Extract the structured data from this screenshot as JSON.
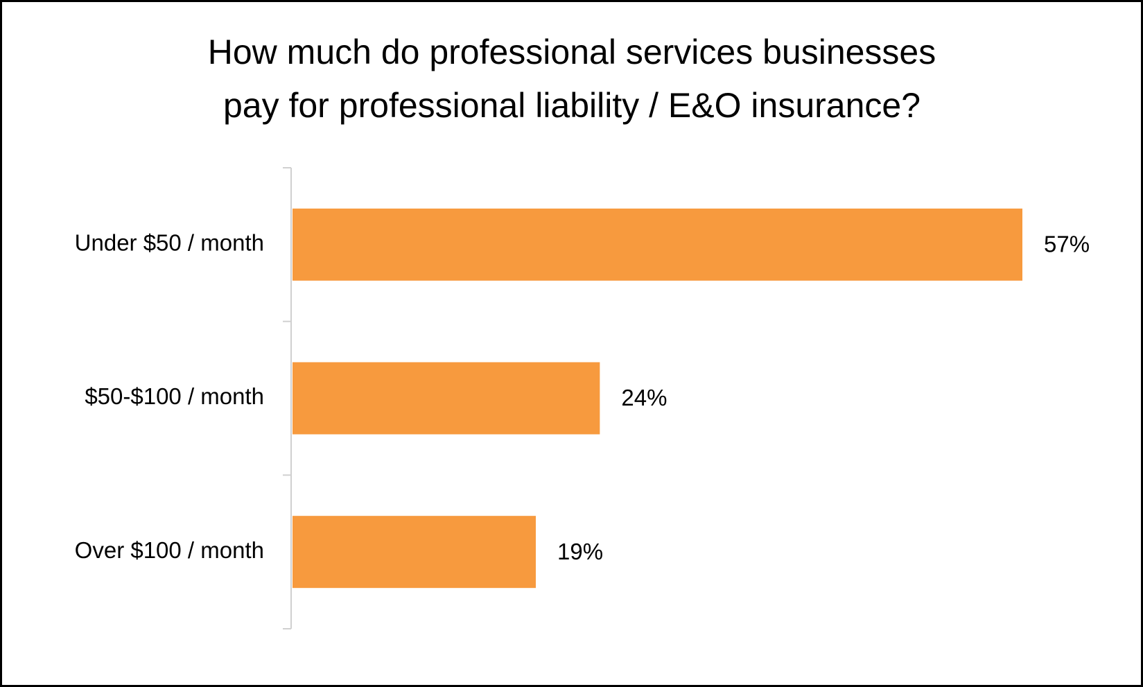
{
  "chart_data": {
    "type": "bar",
    "orientation": "horizontal",
    "title": [
      "How much do professional services businesses",
      "pay for professional liability / E&O insurance?"
    ],
    "categories": [
      "Under $50 / month",
      "$50-$100 / month",
      "Over $100 / month"
    ],
    "values": [
      57,
      24,
      19
    ],
    "value_labels": [
      "57%",
      "24%",
      "19%"
    ],
    "color": "#f79a3e"
  }
}
